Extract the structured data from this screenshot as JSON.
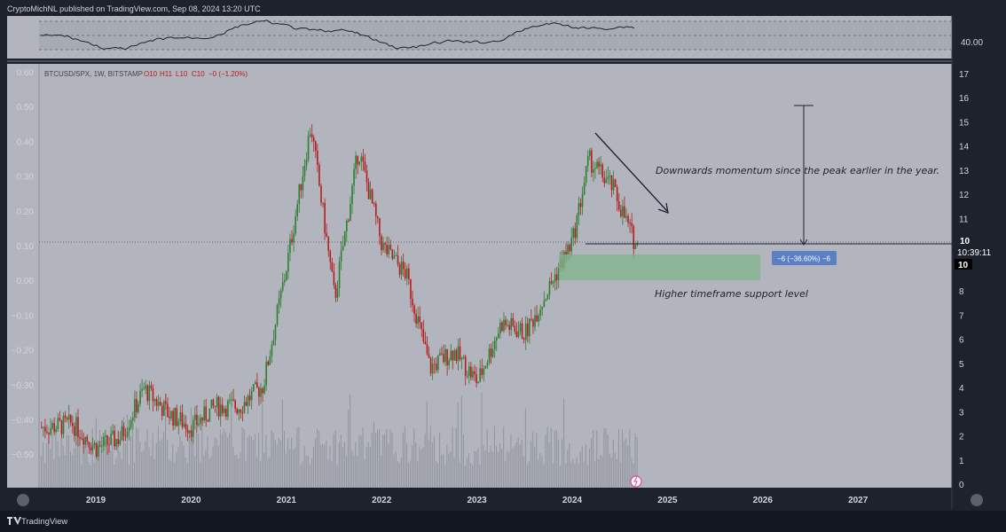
{
  "header": {
    "publisher_line": "CryptoMichNL published on TradingView.com, Sep 08, 2024 13:20 UTC"
  },
  "footer": {
    "brand": "TradingView"
  },
  "rsi_panel": {
    "level_label": "40.00"
  },
  "chart": {
    "symbol_line": "BTCUSD/SPX, 1W, BITSTAMP",
    "ohlc": {
      "o": "O10",
      "h": "H11",
      "l": "L10",
      "c": "C10",
      "change": "−0 (−1.20%)"
    },
    "left_axis_ticks": [
      "0.60",
      "0.50",
      "0.40",
      "0.30",
      "0.20",
      "0.10",
      "0.00",
      "−0.10",
      "−0.20",
      "−0.30",
      "−0.40",
      "−0.50"
    ],
    "right_axis_ticks": [
      "17",
      "16",
      "15",
      "14",
      "13",
      "12",
      "11",
      "10",
      "9",
      "8",
      "7",
      "6",
      "5",
      "4",
      "3",
      "2",
      "1",
      "0"
    ],
    "x_axis_ticks": [
      "2019",
      "2020",
      "2021",
      "2022",
      "2023",
      "2024",
      "2025",
      "2026",
      "2027"
    ],
    "price_badge": "10",
    "countdown": "10:39:11",
    "lower_badge": "10",
    "measure_label": "−6 (−36.60%) −6",
    "annotation_momentum": "Downwards momentum since the peak earlier in the year.",
    "annotation_support": "Higher timeframe support level"
  },
  "colors": {
    "background": "#b2b5be",
    "frame": "#1e222d",
    "up": "#2e7d32",
    "down": "#b71c1c",
    "zone": "#7fb48a",
    "badge": "#5b7fc4"
  },
  "chart_data": {
    "type": "line",
    "title": "BTCUSD/SPX, 1W, BITSTAMP",
    "xlabel": "",
    "ylabel": "",
    "ylim": [
      -0.58,
      0.62
    ],
    "x": [
      "2018-07",
      "2018-10",
      "2019-01",
      "2019-04",
      "2019-07",
      "2019-10",
      "2020-01",
      "2020-04",
      "2020-07",
      "2020-10",
      "2021-01",
      "2021-04",
      "2021-07",
      "2021-10",
      "2022-01",
      "2022-04",
      "2022-07",
      "2022-10",
      "2023-01",
      "2023-04",
      "2023-07",
      "2023-10",
      "2024-01",
      "2024-03",
      "2024-06",
      "2024-09"
    ],
    "series": [
      {
        "values": [
          -0.42,
          -0.41,
          -0.48,
          -0.45,
          -0.31,
          -0.38,
          -0.42,
          -0.36,
          -0.36,
          -0.3,
          0.05,
          0.45,
          -0.05,
          0.38,
          0.1,
          0.02,
          -0.25,
          -0.2,
          -0.29,
          -0.12,
          -0.15,
          -0.02,
          0.12,
          0.35,
          0.27,
          0.1
        ]
      }
    ],
    "support_zone": [
      -0.01,
      0.07
    ],
    "measure_change": "−6 (−36.60%)",
    "grid": false
  }
}
